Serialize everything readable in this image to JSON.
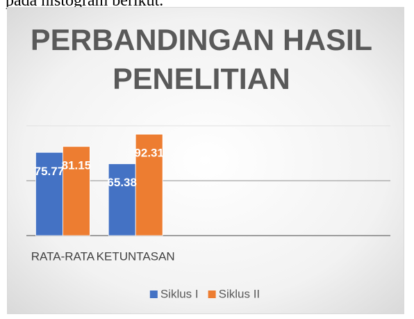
{
  "caption": "pada histogram berikut.",
  "chart_data": {
    "type": "bar",
    "title": "PERBANDINGAN HASIL PENELITIAN",
    "categories": [
      "RATA-RATA",
      "KETUNTASAN",
      null,
      null,
      null
    ],
    "series": [
      {
        "name": "Siklus I",
        "color": "#4472c4",
        "values": [
          75.77,
          65.38,
          null,
          null,
          null
        ]
      },
      {
        "name": "Siklus II",
        "color": "#ed7d31",
        "values": [
          81.15,
          92.31,
          null,
          null,
          null
        ]
      }
    ],
    "ylim": [
      0,
      100
    ],
    "yticks": [
      0,
      50,
      100
    ],
    "grid": true,
    "legend": "bottom"
  }
}
